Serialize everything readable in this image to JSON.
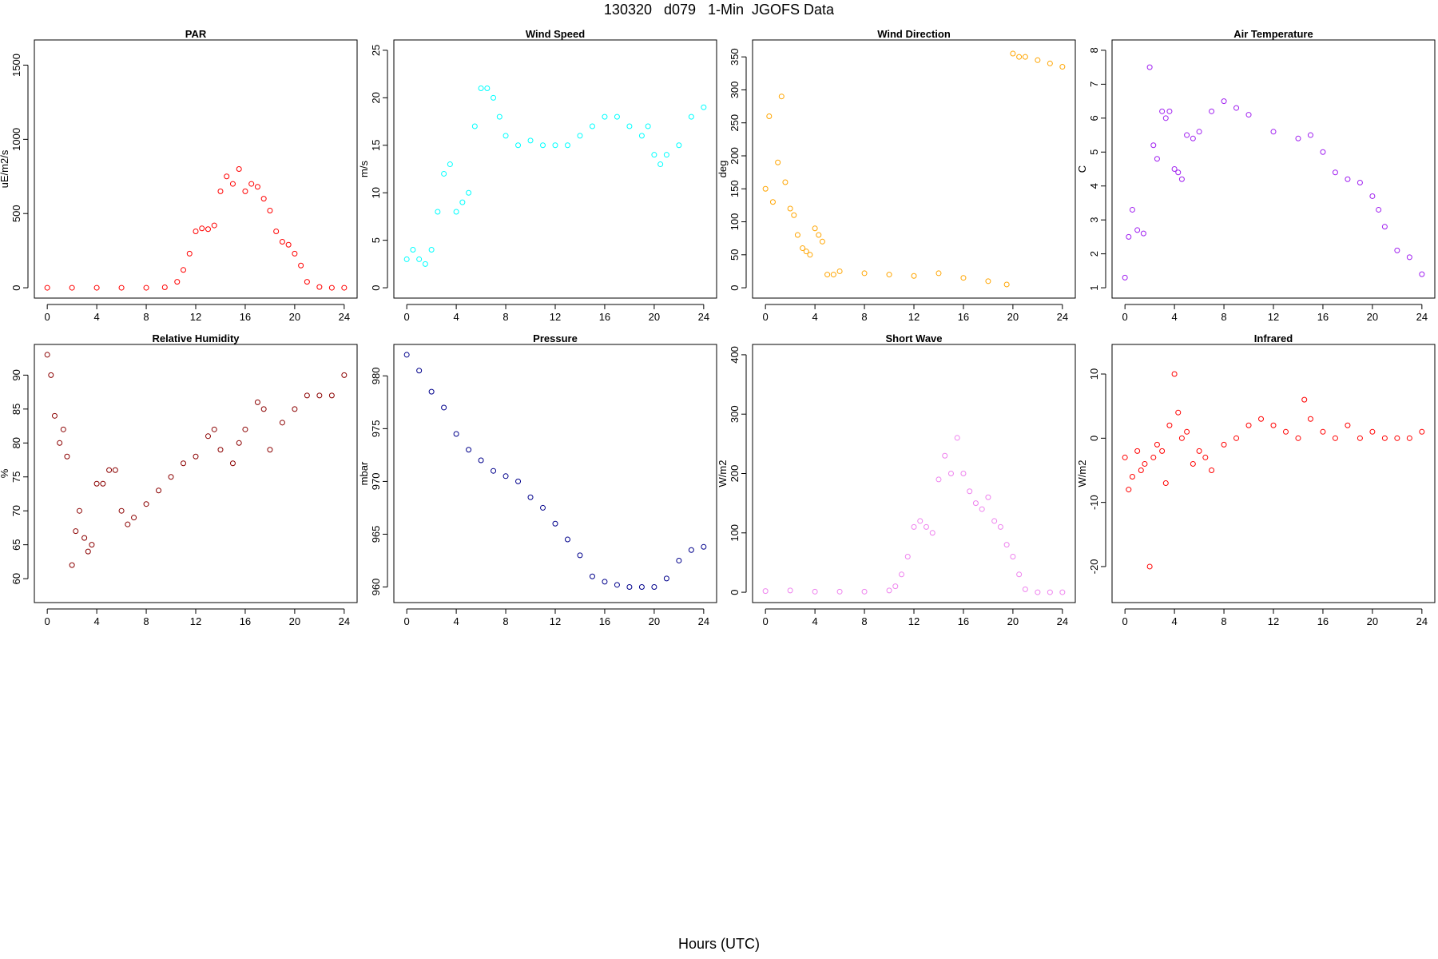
{
  "page": {
    "title": "130320   d079   1-Min  JGOFS Data",
    "footer_label": "Hours (UTC)"
  },
  "chart_data": [
    {
      "type": "scatter",
      "title": "PAR",
      "ylabel": "uE/m2/s",
      "color": "#ff0000",
      "xlim": [
        0,
        24
      ],
      "ylim": [
        0,
        1600
      ],
      "yticks": [
        0,
        500,
        1000,
        1500
      ],
      "xticks": [
        0,
        4,
        8,
        12,
        16,
        20,
        24
      ],
      "x": [
        0,
        2,
        4,
        6,
        8,
        9.5,
        10.5,
        11,
        11.5,
        12,
        12.5,
        13,
        13.5,
        14,
        14.5,
        15,
        15.5,
        16,
        16.5,
        17,
        17.5,
        18,
        18.5,
        19,
        19.5,
        20,
        20.5,
        21,
        22,
        23,
        24
      ],
      "y": [
        0,
        0,
        0,
        0,
        0,
        3,
        40,
        120,
        230,
        380,
        400,
        395,
        420,
        650,
        750,
        700,
        800,
        650,
        700,
        680,
        600,
        520,
        380,
        310,
        290,
        230,
        150,
        40,
        5,
        0,
        0
      ]
    },
    {
      "type": "scatter",
      "title": "Wind Speed",
      "ylabel": "m/s",
      "color": "#00ffff",
      "xlim": [
        0,
        24
      ],
      "ylim": [
        0,
        25
      ],
      "yticks": [
        0,
        5,
        10,
        15,
        20,
        25
      ],
      "xticks": [
        0,
        4,
        8,
        12,
        16,
        20,
        24
      ],
      "x": [
        0,
        0.5,
        1,
        1.5,
        2,
        2.5,
        3,
        3.5,
        4,
        4.5,
        5,
        5.5,
        6,
        6.5,
        7,
        7.5,
        8,
        9,
        10,
        11,
        12,
        13,
        14,
        15,
        16,
        17,
        18,
        19,
        19.5,
        20,
        20.5,
        21,
        22,
        23,
        24
      ],
      "y": [
        3,
        4,
        3,
        2.5,
        4,
        8,
        12,
        13,
        8,
        9,
        10,
        17,
        21,
        21,
        20,
        18,
        16,
        15,
        15.5,
        15,
        15,
        15,
        16,
        17,
        18,
        18,
        17,
        16,
        17,
        14,
        13,
        14,
        15,
        18,
        19
      ]
    },
    {
      "type": "scatter",
      "title": "Wind Direction",
      "ylabel": "deg",
      "color": "#ffa500",
      "xlim": [
        0,
        24
      ],
      "ylim": [
        0,
        360
      ],
      "yticks": [
        0,
        50,
        100,
        150,
        200,
        250,
        300,
        350
      ],
      "xticks": [
        0,
        4,
        8,
        12,
        16,
        20,
        24
      ],
      "x": [
        0,
        0.3,
        0.6,
        1,
        1.3,
        1.6,
        2,
        2.3,
        2.6,
        3,
        3.3,
        3.6,
        4,
        4.3,
        4.6,
        5,
        5.5,
        6,
        8,
        10,
        12,
        14,
        16,
        18,
        19.5,
        20,
        20.5,
        21,
        22,
        23,
        24
      ],
      "y": [
        150,
        260,
        130,
        190,
        290,
        160,
        120,
        110,
        80,
        60,
        55,
        50,
        90,
        80,
        70,
        20,
        20,
        25,
        22,
        20,
        18,
        22,
        15,
        10,
        5,
        355,
        350,
        350,
        345,
        340,
        335
      ]
    },
    {
      "type": "scatter",
      "title": "Air Temperature",
      "ylabel": "C",
      "color": "#a020f0",
      "xlim": [
        0,
        24
      ],
      "ylim": [
        1,
        8
      ],
      "yticks": [
        1,
        2,
        3,
        4,
        5,
        6,
        7,
        8
      ],
      "xticks": [
        0,
        4,
        8,
        12,
        16,
        20,
        24
      ],
      "x": [
        0,
        0.3,
        0.6,
        1,
        1.5,
        2,
        2.3,
        2.6,
        3,
        3.3,
        3.6,
        4,
        4.3,
        4.6,
        5,
        5.5,
        6,
        7,
        8,
        9,
        10,
        12,
        14,
        15,
        16,
        17,
        18,
        19,
        20,
        20.5,
        21,
        22,
        23,
        24
      ],
      "y": [
        1.3,
        2.5,
        3.3,
        2.7,
        2.6,
        7.5,
        5.2,
        4.8,
        6.2,
        6.0,
        6.2,
        4.5,
        4.4,
        4.2,
        5.5,
        5.4,
        5.6,
        6.2,
        6.5,
        6.3,
        6.1,
        5.6,
        5.4,
        5.5,
        5.0,
        4.4,
        4.2,
        4.1,
        3.7,
        3.3,
        2.8,
        2.1,
        1.9,
        1.4
      ]
    },
    {
      "type": "scatter",
      "title": "Relative Humidity",
      "ylabel": "%",
      "color": "#8b0000",
      "xlim": [
        0,
        24
      ],
      "ylim": [
        58,
        93
      ],
      "yticks": [
        60,
        65,
        70,
        75,
        80,
        85,
        90
      ],
      "xticks": [
        0,
        4,
        8,
        12,
        16,
        20,
        24
      ],
      "x": [
        0,
        0.3,
        0.6,
        1,
        1.3,
        1.6,
        2,
        2.3,
        2.6,
        3,
        3.3,
        3.6,
        4,
        4.5,
        5,
        5.5,
        6,
        6.5,
        7,
        8,
        9,
        10,
        11,
        12,
        13,
        13.5,
        14,
        15,
        15.5,
        16,
        17,
        17.5,
        18,
        19,
        20,
        21,
        22,
        23,
        24
      ],
      "y": [
        93,
        90,
        84,
        80,
        82,
        78,
        62,
        67,
        70,
        66,
        64,
        65,
        74,
        74,
        76,
        76,
        70,
        68,
        69,
        71,
        73,
        75,
        77,
        78,
        81,
        82,
        79,
        77,
        80,
        82,
        86,
        85,
        79,
        83,
        85,
        87,
        87,
        87,
        90
      ]
    },
    {
      "type": "scatter",
      "title": "Pressure",
      "ylabel": "mbar",
      "color": "#00008b",
      "xlim": [
        0,
        24
      ],
      "ylim": [
        959.5,
        982
      ],
      "yticks": [
        960,
        965,
        970,
        975,
        980
      ],
      "xticks": [
        0,
        4,
        8,
        12,
        16,
        20,
        24
      ],
      "x": [
        0,
        1,
        2,
        3,
        4,
        5,
        6,
        7,
        8,
        9,
        10,
        11,
        12,
        13,
        14,
        15,
        16,
        17,
        18,
        19,
        20,
        21,
        22,
        23,
        24
      ],
      "y": [
        982,
        980.5,
        978.5,
        977,
        974.5,
        973,
        972,
        971,
        970.5,
        970,
        968.5,
        967.5,
        966,
        964.5,
        963,
        961,
        960.5,
        960.2,
        960,
        960,
        960,
        960.8,
        962.5,
        963.5,
        963.8
      ]
    },
    {
      "type": "scatter",
      "title": "Short Wave",
      "ylabel": "W/m2",
      "color": "#ee82ee",
      "xlim": [
        0,
        24
      ],
      "ylim": [
        0,
        400
      ],
      "yticks": [
        0,
        100,
        200,
        300,
        400
      ],
      "xticks": [
        0,
        4,
        8,
        12,
        16,
        20,
        24
      ],
      "x": [
        0,
        2,
        4,
        6,
        8,
        10,
        10.5,
        11,
        11.5,
        12,
        12.5,
        13,
        13.5,
        14,
        14.5,
        15,
        15.5,
        16,
        16.5,
        17,
        17.5,
        18,
        18.5,
        19,
        19.5,
        20,
        20.5,
        21,
        22,
        23,
        24
      ],
      "y": [
        2,
        3,
        1,
        1,
        1,
        3,
        10,
        30,
        60,
        110,
        120,
        110,
        100,
        190,
        230,
        200,
        260,
        200,
        170,
        150,
        140,
        160,
        120,
        110,
        80,
        60,
        30,
        5,
        0,
        0,
        0
      ]
    },
    {
      "type": "scatter",
      "title": "Infrared",
      "ylabel": "W/m2",
      "color": "#ff0000",
      "xlim": [
        0,
        24
      ],
      "ylim": [
        -24,
        13
      ],
      "yticks": [
        -20,
        -10,
        0,
        10
      ],
      "xticks": [
        0,
        4,
        8,
        12,
        16,
        20,
        24
      ],
      "x": [
        0,
        0.3,
        0.6,
        1,
        1.3,
        1.6,
        2,
        2.3,
        2.6,
        3,
        3.3,
        3.6,
        4,
        4.3,
        4.6,
        5,
        5.5,
        6,
        6.5,
        7,
        8,
        9,
        10,
        11,
        12,
        13,
        14,
        14.5,
        15,
        16,
        17,
        18,
        19,
        20,
        21,
        22,
        23,
        24
      ],
      "y": [
        -3,
        -8,
        -6,
        -2,
        -5,
        -4,
        -20,
        -3,
        -1,
        -2,
        -7,
        2,
        10,
        4,
        0,
        1,
        -4,
        -2,
        -3,
        -5,
        -1,
        0,
        2,
        3,
        2,
        1,
        0,
        6,
        3,
        1,
        0,
        2,
        0,
        1,
        0,
        0,
        0,
        1
      ]
    }
  ]
}
